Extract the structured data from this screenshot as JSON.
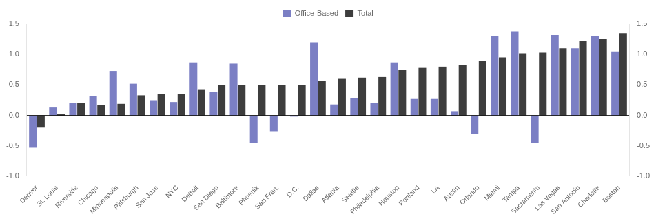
{
  "chart_data": {
    "type": "bar",
    "categories": [
      "Denver",
      "St. Louis",
      "Riverside",
      "Chicago",
      "Minneapolis",
      "Pittsburgh",
      "San Jose",
      "NYC",
      "Detroit",
      "San Diego",
      "Baltimore",
      "Phoenix",
      "San Fran.",
      "D.C.",
      "Dallas",
      "Atlanta",
      "Seattle",
      "Philadelphia",
      "Houston",
      "Portland",
      "LA",
      "Austin",
      "Orlando",
      "Miami",
      "Tampa",
      "Sacramento",
      "Las Vegas",
      "San Antonio",
      "Charlotte",
      "Boston"
    ],
    "series": [
      {
        "name": "Office-Based",
        "color": "#7B7FC4",
        "values": [
          -0.53,
          0.13,
          0.2,
          0.32,
          0.73,
          0.52,
          0.25,
          0.22,
          0.87,
          0.38,
          0.85,
          -0.45,
          -0.27,
          -0.02,
          1.2,
          0.18,
          0.28,
          0.2,
          0.87,
          0.27,
          0.27,
          0.07,
          -0.3,
          1.3,
          1.38,
          -0.45,
          1.32,
          1.1,
          1.3,
          1.05
        ]
      },
      {
        "name": "Total",
        "color": "#3D3D3D",
        "values": [
          -0.2,
          0.02,
          0.2,
          0.17,
          0.19,
          0.33,
          0.35,
          0.35,
          0.43,
          0.5,
          0.5,
          0.5,
          0.5,
          0.5,
          0.57,
          0.6,
          0.62,
          0.63,
          0.75,
          0.78,
          0.8,
          0.83,
          0.9,
          0.95,
          1.02,
          1.03,
          1.1,
          1.22,
          1.25,
          1.35
        ]
      }
    ],
    "ylim": [
      -1.0,
      1.5
    ],
    "yticks": [
      {
        "value": -1.0,
        "label": "-1.0"
      },
      {
        "value": -0.5,
        "label": "-0.5"
      },
      {
        "value": 0.0,
        "label": "0.0"
      },
      {
        "value": 0.5,
        "label": "0.5"
      },
      {
        "value": 1.0,
        "label": "1.0"
      },
      {
        "value": 1.5,
        "label": "1.5"
      }
    ],
    "y2lim": [
      -1.0,
      1.5
    ],
    "y2ticks": [
      {
        "value": -1.0,
        "label": "-1.0"
      },
      {
        "value": -0.5,
        "label": "-0.5"
      },
      {
        "value": 0.0,
        "label": "0.0"
      },
      {
        "value": 0.5,
        "label": "0.5"
      },
      {
        "value": 1.0,
        "label": "1.0"
      },
      {
        "value": 1.5,
        "label": "1.5"
      }
    ],
    "grid": false,
    "legend": "top"
  }
}
